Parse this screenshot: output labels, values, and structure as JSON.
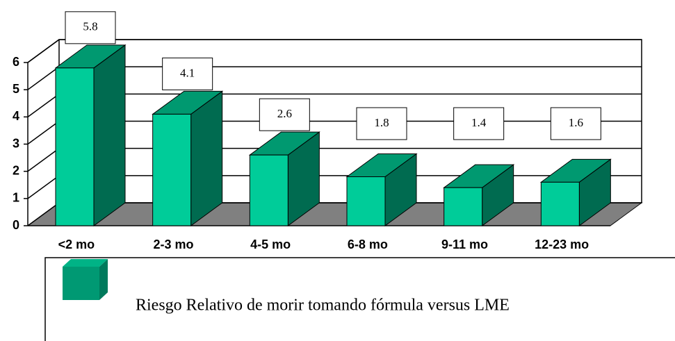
{
  "chart_data": {
    "type": "bar",
    "categories": [
      "<2 mo",
      "2-3 mo",
      "4-5 mo",
      "6-8 mo",
      "9-11 mo",
      "12-23 mo"
    ],
    "series": [
      {
        "name": "Riesgo Relativo de morir tomando fórmula versus LME",
        "color": "#00cc99",
        "values": [
          5.8,
          4.1,
          2.6,
          1.8,
          1.4,
          1.6
        ]
      }
    ],
    "ylim": [
      0,
      6
    ],
    "yticks": [
      0,
      1,
      2,
      3,
      4,
      5,
      6
    ],
    "grid": true
  }
}
